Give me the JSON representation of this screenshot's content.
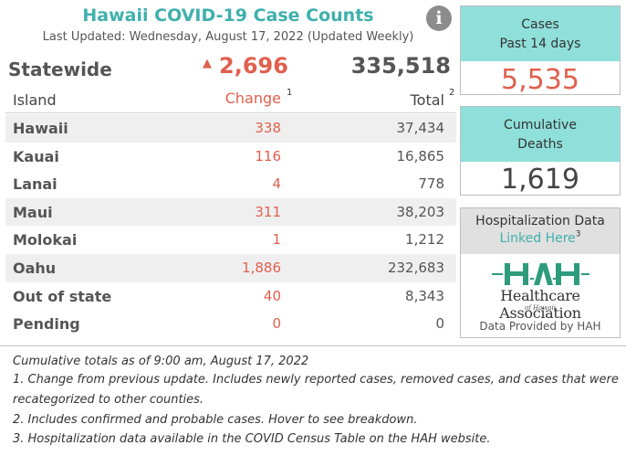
{
  "header": {
    "title": "Hawaii COVID-19 Case Counts",
    "last_updated": "Last Updated: Wednesday, August 17, 2022 (Updated Weekly)",
    "info_icon": "info-icon"
  },
  "statewide": {
    "label": "Statewide",
    "arrow": "▲",
    "change": "2,696",
    "total": "335,518"
  },
  "table": {
    "columns": {
      "island": "Island",
      "change": "Change",
      "change_note": "1",
      "total": "Total",
      "total_note": "2"
    },
    "rows": [
      {
        "island": "Hawaii",
        "change": "338",
        "total": "37,434"
      },
      {
        "island": "Kauai",
        "change": "116",
        "total": "16,865"
      },
      {
        "island": "Lanai",
        "change": "4",
        "total": "778"
      },
      {
        "island": "Maui",
        "change": "311",
        "total": "38,203"
      },
      {
        "island": "Molokai",
        "change": "1",
        "total": "1,212"
      },
      {
        "island": "Oahu",
        "change": "1,886",
        "total": "232,683"
      },
      {
        "island": "Out of state",
        "change": "40",
        "total": "8,343"
      },
      {
        "island": "Pending",
        "change": "0",
        "total": "0"
      }
    ]
  },
  "cards": {
    "cases": {
      "line1": "Cases",
      "line2": "Past 14 days",
      "value": "5,535"
    },
    "deaths": {
      "line1": "Cumulative",
      "line2": "Deaths",
      "value": "1,619"
    },
    "hospitalization": {
      "title": "Hospitalization Data",
      "link": "Linked Here",
      "link_note": "3",
      "logo_mark": "HAH",
      "logo_text": "Healthcare Association",
      "logo_sub": "of Hawaii",
      "provided": "Data Provided by HAH"
    }
  },
  "footnotes": [
    "Cumulative totals as of 9:00 am, August 17, 2022",
    "1. Change from previous update. Includes newly reported cases, removed cases, and cases that were",
    "recategorized to other counties.",
    "2. Includes confirmed and probable cases. Hover to see breakdown.",
    "3. Hospitalization data available in the COVID Census Table on the HAH website."
  ],
  "colors": {
    "accent": "#3fb0ac",
    "change": "#e0604e",
    "card_header": "#8fe0da",
    "hah_green": "#2e9c7c"
  }
}
